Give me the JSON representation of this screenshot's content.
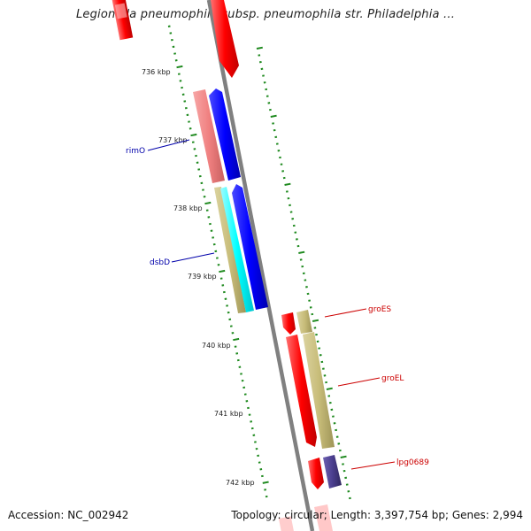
{
  "header": {
    "title": "Legionella pneumophila subsp. pneumophila str. Philadelphia ..."
  },
  "footer": {
    "accession": "Accession: NC_002942",
    "summary": "Topology: circular; Length: 3,397,754 bp; Genes: 2,994"
  },
  "ruler": {
    "tick_labels": [
      "736 kbp",
      "737 kbp",
      "738 kbp",
      "739 kbp",
      "740 kbp",
      "741 kbp",
      "742 kbp"
    ]
  },
  "genes": {
    "left_labels": [
      "rimO",
      "dsbD"
    ],
    "right_labels": [
      "groES",
      "groEL",
      "lpg0689"
    ]
  },
  "colors": {
    "backbone": "#808080",
    "cds_red": "#ff0000",
    "cds_pink": "#f08080",
    "cds_blue": "#0000ff",
    "cds_cyan": "#00ffff",
    "cds_olive": "#c8bd7a",
    "cds_purple": "#4b3f8f",
    "label_blue": "#0000aa",
    "label_red": "#cc0000",
    "tick_green": "#1f8a1f"
  }
}
